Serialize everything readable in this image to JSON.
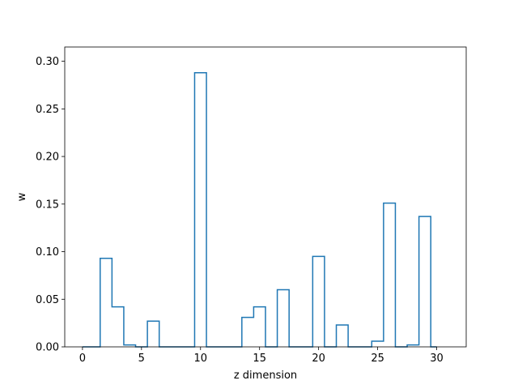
{
  "chart_data": {
    "type": "step",
    "title": "",
    "xlabel": "z dimension",
    "ylabel": "w",
    "xlim": [
      -1.5,
      32.5
    ],
    "ylim": [
      0,
      0.315
    ],
    "x_ticks": [
      "0",
      "5",
      "10",
      "15",
      "20",
      "25",
      "30"
    ],
    "y_ticks": [
      "0.00",
      "0.05",
      "0.10",
      "0.15",
      "0.20",
      "0.25",
      "0.30"
    ],
    "bins": [
      0,
      1,
      2,
      3,
      4,
      5,
      6,
      7,
      8,
      9,
      10,
      11,
      12,
      13,
      14,
      15,
      16,
      17,
      18,
      19,
      20,
      21,
      22,
      23,
      24,
      25,
      26,
      27,
      28,
      29,
      30
    ],
    "values": [
      0.0,
      0.0,
      0.093,
      0.042,
      0.002,
      0.0,
      0.027,
      0.0,
      0.0,
      0.0,
      0.288,
      0.0,
      0.0,
      0.0,
      0.031,
      0.042,
      0.0,
      0.06,
      0.0,
      0.0,
      0.095,
      0.0,
      0.023,
      0.0,
      0.0,
      0.006,
      0.151,
      0.0,
      0.002,
      0.137,
      0.0
    ],
    "grid": false,
    "line_color": "#1f77b4"
  }
}
